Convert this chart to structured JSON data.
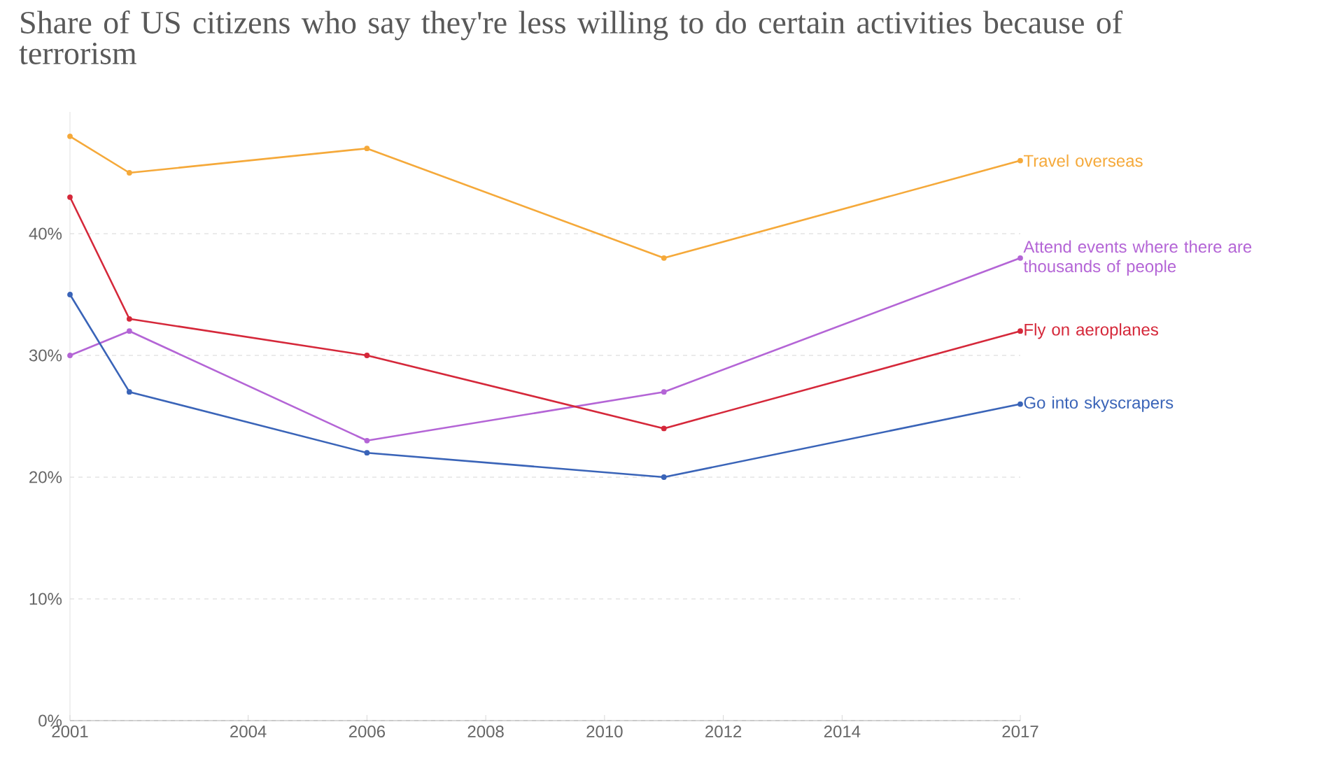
{
  "chart_data": {
    "type": "line",
    "title": "Share of US citizens who say they're less willing to do certain activities because of terrorism",
    "x": [
      2001,
      2002,
      2006,
      2011,
      2017
    ],
    "xlim": [
      2001,
      2017
    ],
    "xticks": [
      2001,
      2004,
      2006,
      2008,
      2010,
      2012,
      2014,
      2017
    ],
    "ylim": [
      0,
      50
    ],
    "yticks": [
      {
        "value": 0,
        "label": "0%"
      },
      {
        "value": 10,
        "label": "10%"
      },
      {
        "value": 20,
        "label": "20%"
      },
      {
        "value": 30,
        "label": "30%"
      },
      {
        "value": 40,
        "label": "40%"
      }
    ],
    "grid": "y",
    "marker": "circle",
    "line_style": "solid",
    "legend": false,
    "series": [
      {
        "name": "Travel overseas",
        "color": "#f5a93a",
        "values": [
          48,
          45,
          47,
          38,
          46
        ]
      },
      {
        "name": "Attend events where there are thousands of people",
        "color": "#b465d6",
        "values": [
          30,
          32,
          23,
          27,
          38
        ]
      },
      {
        "name": "Fly on aeroplanes",
        "color": "#d5283a",
        "values": [
          43,
          33,
          30,
          24,
          32
        ]
      },
      {
        "name": "Go into skyscrapers",
        "color": "#3a64b8",
        "values": [
          35,
          27,
          22,
          20,
          26
        ]
      }
    ]
  }
}
